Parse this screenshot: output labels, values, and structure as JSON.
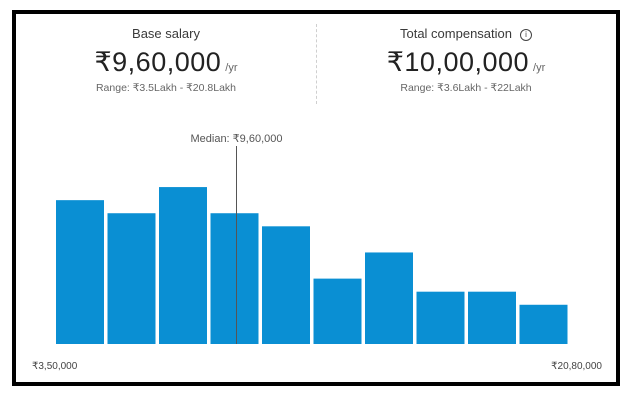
{
  "base_salary": {
    "label": "Base salary",
    "value": "₹9,60,000",
    "unit": "/yr",
    "range": "Range: ₹3.5Lakh - ₹20.8Lakh"
  },
  "total_compensation": {
    "label": "Total compensation",
    "info_icon": "info-icon",
    "value": "₹10,00,000",
    "unit": "/yr",
    "range": "Range: ₹3.6Lakh - ₹22Lakh"
  },
  "colors": {
    "bar": "#0a8fd3",
    "median_line": "#555555"
  },
  "chart_data": {
    "type": "bar",
    "values": [
      11,
      10,
      12,
      10,
      9,
      5,
      7,
      4,
      4,
      3
    ],
    "ylim": [
      0,
      13
    ],
    "median_label": "Median: ₹9,60,000",
    "median_position": 3.5,
    "x_min_label": "₹3,50,000",
    "x_max_label": "₹20,80,000",
    "grid": false,
    "legend": "none"
  }
}
